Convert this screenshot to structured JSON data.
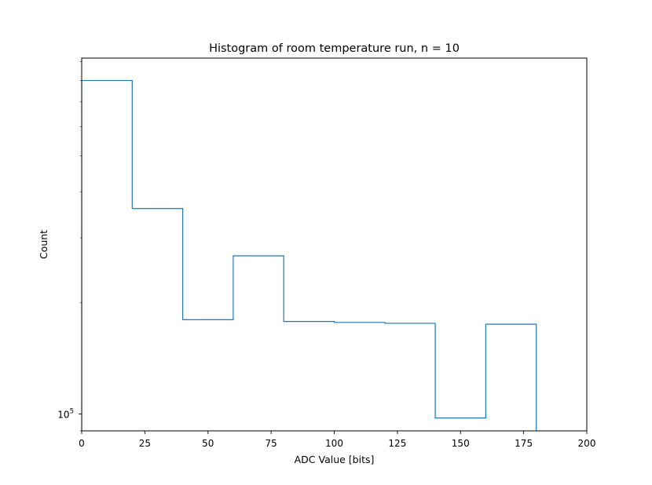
{
  "chart_data": {
    "type": "histogram",
    "title": "Histogram of room temperature run, n = 10",
    "xlabel": "ADC Value [bits]",
    "ylabel": "Count",
    "x_scale": "linear",
    "y_scale": "log",
    "xlim": [
      0,
      200
    ],
    "ylim": [
      90000,
      920000
    ],
    "x_ticks": [
      "0",
      "25",
      "50",
      "75",
      "100",
      "125",
      "150",
      "175",
      "200"
    ],
    "y_ticks": [
      {
        "value": 100000,
        "base": "10",
        "exponent": "5"
      }
    ],
    "bin_edges": [
      0,
      20,
      40,
      60,
      80,
      100,
      120,
      140,
      160,
      180,
      200
    ],
    "counts": [
      800000,
      360000,
      180000,
      268000,
      178000,
      177000,
      176000,
      97500,
      175000,
      0
    ],
    "line_color": "#1f77b4",
    "grid": false,
    "legend": "none"
  }
}
